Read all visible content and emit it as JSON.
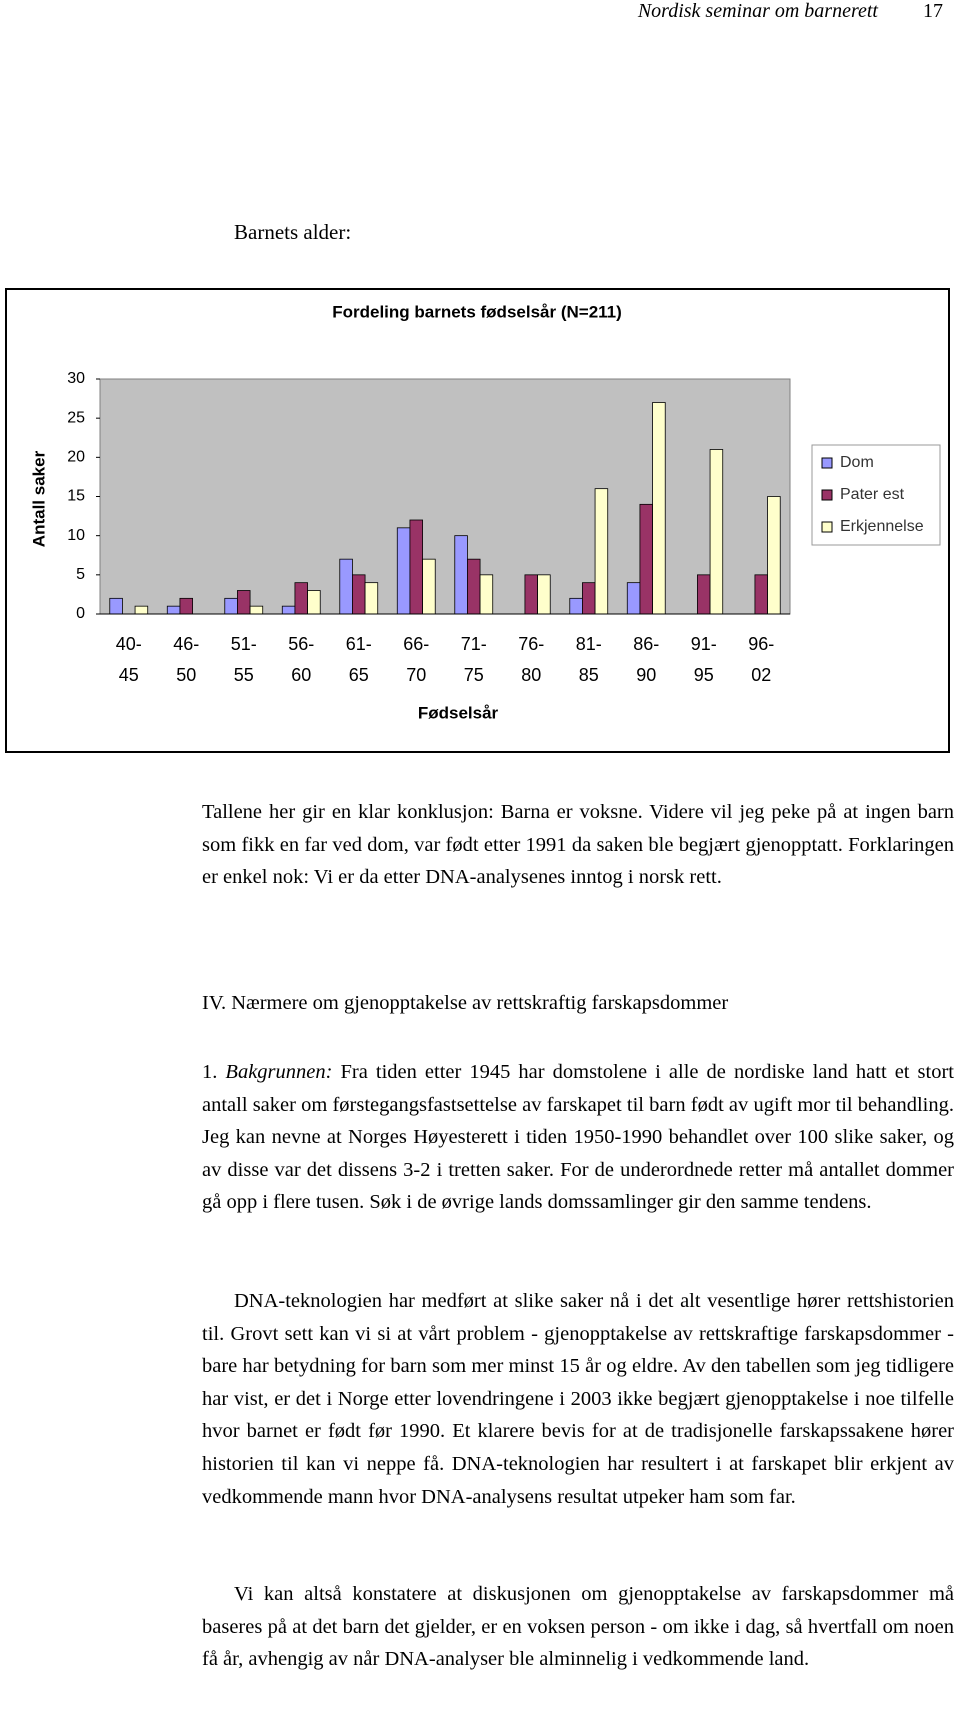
{
  "header": {
    "running_title": "Nordisk seminar om barnerett",
    "page_number": "17"
  },
  "section_label": "Barnets alder:",
  "chart_data": {
    "type": "bar",
    "title": "Fordeling barnets fødselsår (N=211)",
    "x_label": "Fødselsår",
    "y_label": "Antall saker",
    "categories": [
      [
        "40-",
        "45"
      ],
      [
        "46-",
        "50"
      ],
      [
        "51-",
        "55"
      ],
      [
        "56-",
        "60"
      ],
      [
        "61-",
        "65"
      ],
      [
        "66-",
        "70"
      ],
      [
        "71-",
        "75"
      ],
      [
        "76-",
        "80"
      ],
      [
        "81-",
        "85"
      ],
      [
        "86-",
        "90"
      ],
      [
        "91-",
        "95"
      ],
      [
        "96-",
        "02"
      ]
    ],
    "series": [
      {
        "name": "Dom",
        "color": "#9999ff",
        "values": [
          2,
          1,
          2,
          1,
          7,
          11,
          10,
          0,
          2,
          4,
          0,
          0
        ]
      },
      {
        "name": "Pater est",
        "color": "#993366",
        "values": [
          0,
          2,
          3,
          4,
          5,
          12,
          7,
          5,
          4,
          14,
          5,
          5
        ]
      },
      {
        "name": "Erkjennelse",
        "color": "#ffffcc",
        "values": [
          1,
          0,
          1,
          3,
          4,
          7,
          5,
          5,
          16,
          27,
          21,
          15
        ]
      }
    ],
    "ylim": [
      0,
      30
    ],
    "yticks": [
      0,
      5,
      10,
      15,
      20,
      25,
      30
    ],
    "grid": false,
    "legend": "right",
    "plot_background": "#c0c0c0"
  },
  "paragraphs": [
    {
      "text": "Tallene her gir en klar konklusjon: Barna er voksne. Videre vil jeg peke på at ingen barn som fikk en far ved dom, var født etter 1991 da saken ble begjært gjenopptatt. Forklaringen er enkel nok: Vi er da etter DNA-analysenes inntog i norsk rett."
    },
    {
      "heading": "IV. Nærmere om gjenopptakelse av rettskraftig farskapsdommer"
    },
    {
      "number": "1.",
      "lead": "Bakgrunnen:",
      "text": "Fra tiden etter 1945 har domstolene i alle de nordiske land hatt et stort antall saker om førstegangsfastsettelse av farskapet til barn født av ugift mor til behandling. Jeg kan nevne at Norges Høyesterett i tiden 1950-1990 behandlet over 100 slike saker, og av disse var det dissens 3-2 i tretten saker. For de underordnede retter må antallet dommer gå opp i flere tusen. Søk i de øvrige lands domssamlinger gir den samme tendens."
    },
    {
      "text": "DNA-teknologien har medført at slike saker nå i det alt vesentlige hører rettshistorien til. Grovt sett kan vi si at vårt problem - gjenopptakelse av rettskraftige farskapsdommer - bare har betydning for barn som mer minst 15 år og eldre. Av den tabellen som jeg tidligere har vist, er det i Norge etter lovendringene i 2003 ikke begjært gjenopptakelse i noe tilfelle hvor barnet er født før 1990. Et klarere bevis for at de tradisjonelle farskapssakene hører historien til kan vi neppe få. DNA-teknologien har resultert i at farskapet blir erkjent av vedkommende mann hvor DNA-analysens resultat utpeker ham som far."
    },
    {
      "text": "Vi kan altså konstatere at diskusjonen om gjenopptakelse av farskapsdommer må baseres på at det barn det gjelder, er en voksen person - om ikke i dag, så hvertfall om noen få år, avhengig av når DNA-analyser ble alminnelig i vedkommende land."
    }
  ]
}
